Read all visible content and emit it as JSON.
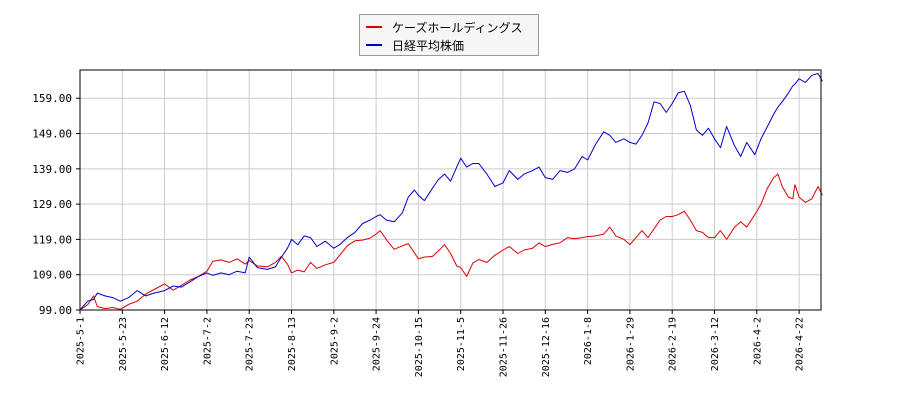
{
  "chart_data": {
    "type": "line",
    "title": "",
    "xlabel": "",
    "ylabel": "",
    "x_ticks": [
      "2025-5-1",
      "2025-5-23",
      "2025-6-12",
      "2025-7-2",
      "2025-7-23",
      "2025-8-13",
      "2025-9-2",
      "2025-9-24",
      "2025-10-15",
      "2025-11-5",
      "2025-11-26",
      "2025-12-16",
      "2026-1-8",
      "2026-1-29",
      "2026-2-19",
      "2026-3-12",
      "2026-4-2",
      "2026-4-22"
    ],
    "y_ticks": [
      "99.00",
      "109.00",
      "119.00",
      "129.00",
      "139.00",
      "149.00",
      "159.00"
    ],
    "ylim": [
      99,
      167
    ],
    "grid": true,
    "legend_position": "top-center",
    "series": [
      {
        "name": "ケーズホールディングス",
        "color": "#dd0000",
        "points": [
          [
            "2025-5-1",
            99.0
          ],
          [
            "2025-5-5",
            100.5
          ],
          [
            "2025-5-8",
            103.0
          ],
          [
            "2025-5-10",
            100.0
          ],
          [
            "2025-5-14",
            99.4
          ],
          [
            "2025-5-18",
            99.7
          ],
          [
            "2025-5-22",
            99.2
          ],
          [
            "2025-5-26",
            100.6
          ],
          [
            "2025-5-30",
            101.5
          ],
          [
            "2025-6-3",
            103.5
          ],
          [
            "2025-6-7",
            104.8
          ],
          [
            "2025-6-12",
            106.4
          ],
          [
            "2025-6-16",
            104.6
          ],
          [
            "2025-6-20",
            106.0
          ],
          [
            "2025-6-24",
            107.5
          ],
          [
            "2025-6-28",
            108.5
          ],
          [
            "2025-7-2",
            110.0
          ],
          [
            "2025-7-5",
            112.8
          ],
          [
            "2025-7-9",
            113.2
          ],
          [
            "2025-7-13",
            112.5
          ],
          [
            "2025-7-17",
            113.5
          ],
          [
            "2025-7-21",
            112.0
          ],
          [
            "2025-7-23",
            113.0
          ],
          [
            "2025-7-27",
            111.5
          ],
          [
            "2025-8-1",
            111.2
          ],
          [
            "2025-8-5",
            112.5
          ],
          [
            "2025-8-8",
            114.2
          ],
          [
            "2025-8-11",
            112.0
          ],
          [
            "2025-8-13",
            109.5
          ],
          [
            "2025-8-16",
            110.3
          ],
          [
            "2025-8-19",
            109.8
          ],
          [
            "2025-8-22",
            112.5
          ],
          [
            "2025-8-25",
            110.8
          ],
          [
            "2025-8-29",
            111.8
          ],
          [
            "2025-9-2",
            112.5
          ],
          [
            "2025-9-5",
            114.5
          ],
          [
            "2025-9-9",
            117.2
          ],
          [
            "2025-9-13",
            118.6
          ],
          [
            "2025-9-17",
            118.8
          ],
          [
            "2025-9-21",
            119.4
          ],
          [
            "2025-9-24",
            120.5
          ],
          [
            "2025-9-26",
            121.5
          ],
          [
            "2025-9-29",
            119.0
          ],
          [
            "2025-10-3",
            116.2
          ],
          [
            "2025-10-7",
            117.2
          ],
          [
            "2025-10-10",
            117.8
          ],
          [
            "2025-10-13",
            115.2
          ],
          [
            "2025-10-15",
            113.5
          ],
          [
            "2025-10-18",
            114.0
          ],
          [
            "2025-10-22",
            114.2
          ],
          [
            "2025-10-25",
            115.8
          ],
          [
            "2025-10-28",
            117.5
          ],
          [
            "2025-10-31",
            115.0
          ],
          [
            "2025-11-3",
            111.5
          ],
          [
            "2025-11-5",
            111.0
          ],
          [
            "2025-11-8",
            108.5
          ],
          [
            "2025-11-11",
            112.3
          ],
          [
            "2025-11-14",
            113.3
          ],
          [
            "2025-11-18",
            112.5
          ],
          [
            "2025-11-22",
            114.5
          ],
          [
            "2025-11-26",
            116.0
          ],
          [
            "2025-11-29",
            117.0
          ],
          [
            "2025-12-3",
            115.0
          ],
          [
            "2025-12-6",
            116.0
          ],
          [
            "2025-12-10",
            116.5
          ],
          [
            "2025-12-13",
            118.0
          ],
          [
            "2025-12-16",
            117.0
          ],
          [
            "2025-12-20",
            117.6
          ],
          [
            "2025-12-24",
            118.0
          ],
          [
            "2025-12-28",
            119.5
          ],
          [
            "2026-1-1",
            119.2
          ],
          [
            "2026-1-5",
            119.5
          ],
          [
            "2026-1-8",
            119.8
          ],
          [
            "2026-1-12",
            120.0
          ],
          [
            "2026-1-16",
            120.5
          ],
          [
            "2026-1-19",
            122.5
          ],
          [
            "2026-1-22",
            120.0
          ],
          [
            "2026-1-26",
            119.0
          ],
          [
            "2026-1-29",
            117.5
          ],
          [
            "2026-2-1",
            119.5
          ],
          [
            "2026-2-4",
            121.5
          ],
          [
            "2026-2-7",
            119.5
          ],
          [
            "2026-2-10",
            122.0
          ],
          [
            "2026-2-13",
            124.5
          ],
          [
            "2026-2-16",
            125.5
          ],
          [
            "2026-2-19",
            125.5
          ],
          [
            "2026-2-22",
            126.0
          ],
          [
            "2026-2-25",
            127.0
          ],
          [
            "2026-2-28",
            124.5
          ],
          [
            "2026-3-3",
            121.5
          ],
          [
            "2026-3-6",
            121.0
          ],
          [
            "2026-3-9",
            119.5
          ],
          [
            "2026-3-12",
            119.5
          ],
          [
            "2026-3-15",
            121.5
          ],
          [
            "2026-3-18",
            119.0
          ],
          [
            "2026-3-22",
            122.5
          ],
          [
            "2026-3-25",
            124.0
          ],
          [
            "2026-3-28",
            122.5
          ],
          [
            "2026-4-1",
            126.0
          ],
          [
            "2026-4-4",
            129.0
          ],
          [
            "2026-4-7",
            133.5
          ],
          [
            "2026-4-10",
            136.5
          ],
          [
            "2026-4-12",
            137.5
          ],
          [
            "2026-4-14",
            134.0
          ],
          [
            "2026-4-17",
            131.0
          ],
          [
            "2026-4-19",
            130.5
          ],
          [
            "2026-4-20",
            134.5
          ],
          [
            "2026-4-22",
            131.0
          ],
          [
            "2026-4-25",
            129.5
          ],
          [
            "2026-4-28",
            130.5
          ],
          [
            "2026-5-1",
            134.0
          ],
          [
            "2026-5-3",
            131.5
          ]
        ]
      },
      {
        "name": "日経平均株価",
        "color": "#0000cc",
        "points": [
          [
            "2025-5-1",
            99.0
          ],
          [
            "2025-5-5",
            101.5
          ],
          [
            "2025-5-8",
            102.0
          ],
          [
            "2025-5-10",
            103.8
          ],
          [
            "2025-5-14",
            103.0
          ],
          [
            "2025-5-18",
            102.5
          ],
          [
            "2025-5-22",
            101.5
          ],
          [
            "2025-5-26",
            102.5
          ],
          [
            "2025-5-30",
            104.5
          ],
          [
            "2025-6-3",
            103.0
          ],
          [
            "2025-6-7",
            103.8
          ],
          [
            "2025-6-12",
            104.5
          ],
          [
            "2025-6-16",
            105.8
          ],
          [
            "2025-6-20",
            105.5
          ],
          [
            "2025-6-24",
            107.0
          ],
          [
            "2025-6-28",
            108.5
          ],
          [
            "2025-7-2",
            109.5
          ],
          [
            "2025-7-5",
            108.8
          ],
          [
            "2025-7-9",
            109.5
          ],
          [
            "2025-7-13",
            109.0
          ],
          [
            "2025-7-17",
            110.0
          ],
          [
            "2025-7-21",
            109.5
          ],
          [
            "2025-7-23",
            114.0
          ],
          [
            "2025-7-27",
            111.0
          ],
          [
            "2025-8-1",
            110.5
          ],
          [
            "2025-8-5",
            111.2
          ],
          [
            "2025-8-8",
            114.0
          ],
          [
            "2025-8-11",
            116.5
          ],
          [
            "2025-8-13",
            119.0
          ],
          [
            "2025-8-16",
            117.5
          ],
          [
            "2025-8-19",
            120.0
          ],
          [
            "2025-8-22",
            119.5
          ],
          [
            "2025-8-25",
            117.0
          ],
          [
            "2025-8-29",
            118.5
          ],
          [
            "2025-9-2",
            116.5
          ],
          [
            "2025-9-5",
            117.5
          ],
          [
            "2025-9-9",
            119.5
          ],
          [
            "2025-9-13",
            121.0
          ],
          [
            "2025-9-17",
            123.5
          ],
          [
            "2025-9-21",
            124.5
          ],
          [
            "2025-9-24",
            125.5
          ],
          [
            "2025-9-26",
            126.0
          ],
          [
            "2025-9-29",
            124.5
          ],
          [
            "2025-10-3",
            124.0
          ],
          [
            "2025-10-7",
            126.5
          ],
          [
            "2025-10-10",
            131.0
          ],
          [
            "2025-10-13",
            133.0
          ],
          [
            "2025-10-15",
            131.5
          ],
          [
            "2025-10-18",
            130.0
          ],
          [
            "2025-10-22",
            133.5
          ],
          [
            "2025-10-25",
            136.0
          ],
          [
            "2025-10-28",
            137.5
          ],
          [
            "2025-10-31",
            135.5
          ],
          [
            "2025-11-3",
            139.5
          ],
          [
            "2025-11-5",
            142.0
          ],
          [
            "2025-11-8",
            139.5
          ],
          [
            "2025-11-11",
            140.5
          ],
          [
            "2025-11-14",
            140.5
          ],
          [
            "2025-11-18",
            137.5
          ],
          [
            "2025-11-22",
            134.0
          ],
          [
            "2025-11-26",
            135.0
          ],
          [
            "2025-11-29",
            138.5
          ],
          [
            "2025-12-3",
            136.0
          ],
          [
            "2025-12-6",
            137.5
          ],
          [
            "2025-12-10",
            138.5
          ],
          [
            "2025-12-13",
            139.5
          ],
          [
            "2025-12-16",
            136.5
          ],
          [
            "2025-12-20",
            136.0
          ],
          [
            "2025-12-24",
            138.5
          ],
          [
            "2025-12-28",
            138.0
          ],
          [
            "2026-1-1",
            139.0
          ],
          [
            "2026-1-5",
            142.5
          ],
          [
            "2026-1-8",
            141.5
          ],
          [
            "2026-1-12",
            146.0
          ],
          [
            "2026-1-16",
            149.5
          ],
          [
            "2026-1-19",
            148.5
          ],
          [
            "2026-1-22",
            146.5
          ],
          [
            "2026-1-26",
            147.5
          ],
          [
            "2026-1-29",
            146.5
          ],
          [
            "2026-2-1",
            146.0
          ],
          [
            "2026-2-4",
            148.5
          ],
          [
            "2026-2-7",
            152.0
          ],
          [
            "2026-2-10",
            158.0
          ],
          [
            "2026-2-13",
            157.5
          ],
          [
            "2026-2-16",
            155.0
          ],
          [
            "2026-2-19",
            157.5
          ],
          [
            "2026-2-22",
            160.5
          ],
          [
            "2026-2-25",
            161.0
          ],
          [
            "2026-2-28",
            157.0
          ],
          [
            "2026-3-3",
            150.0
          ],
          [
            "2026-3-6",
            148.5
          ],
          [
            "2026-3-9",
            150.5
          ],
          [
            "2026-3-12",
            147.5
          ],
          [
            "2026-3-15",
            145.0
          ],
          [
            "2026-3-18",
            151.0
          ],
          [
            "2026-3-22",
            145.5
          ],
          [
            "2026-3-25",
            142.5
          ],
          [
            "2026-3-28",
            146.5
          ],
          [
            "2026-4-1",
            143.0
          ],
          [
            "2026-4-4",
            147.5
          ],
          [
            "2026-4-7",
            151.0
          ],
          [
            "2026-4-10",
            154.5
          ],
          [
            "2026-4-12",
            156.5
          ],
          [
            "2026-4-14",
            158.0
          ],
          [
            "2026-4-17",
            160.5
          ],
          [
            "2026-4-19",
            162.5
          ],
          [
            "2026-4-20",
            163.0
          ],
          [
            "2026-4-22",
            164.5
          ],
          [
            "2026-4-25",
            163.5
          ],
          [
            "2026-4-28",
            165.5
          ],
          [
            "2026-5-1",
            166.0
          ],
          [
            "2026-5-3",
            163.8
          ]
        ]
      }
    ]
  }
}
